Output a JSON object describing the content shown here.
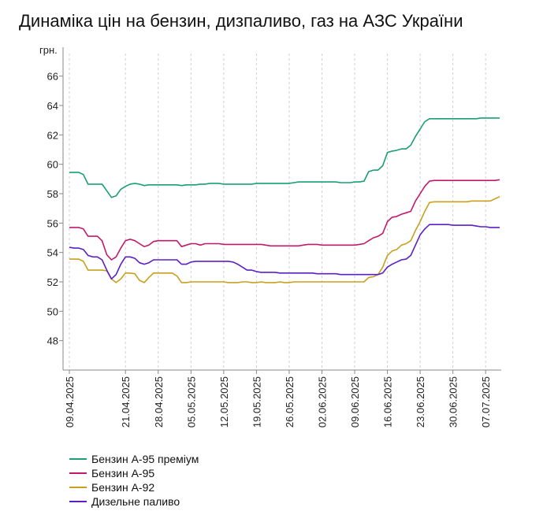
{
  "chart_data": {
    "type": "line",
    "title": "Динаміка цін на бензин, дизпаливо, газ на АЗС України",
    "ylabel": "грн.",
    "xlabel": "",
    "ylim": [
      46,
      67
    ],
    "yticks": [
      48,
      50,
      52,
      54,
      56,
      58,
      60,
      62,
      64,
      66
    ],
    "grid": "vertical dashed",
    "legend_position": "bottom-left",
    "x": [
      "2025-04-09",
      "2025-04-10",
      "2025-04-11",
      "2025-04-12",
      "2025-04-13",
      "2025-04-14",
      "2025-04-15",
      "2025-04-16",
      "2025-04-17",
      "2025-04-18",
      "2025-04-19",
      "2025-04-20",
      "2025-04-21",
      "2025-04-22",
      "2025-04-23",
      "2025-04-24",
      "2025-04-25",
      "2025-04-26",
      "2025-04-27",
      "2025-04-28",
      "2025-04-29",
      "2025-04-30",
      "2025-05-01",
      "2025-05-02",
      "2025-05-03",
      "2025-05-04",
      "2025-05-05",
      "2025-05-06",
      "2025-05-07",
      "2025-05-08",
      "2025-05-09",
      "2025-05-10",
      "2025-05-11",
      "2025-05-12",
      "2025-05-13",
      "2025-05-14",
      "2025-05-15",
      "2025-05-16",
      "2025-05-17",
      "2025-05-18",
      "2025-05-19",
      "2025-05-20",
      "2025-05-21",
      "2025-05-22",
      "2025-05-23",
      "2025-05-24",
      "2025-05-25",
      "2025-05-26",
      "2025-05-27",
      "2025-05-28",
      "2025-05-29",
      "2025-05-30",
      "2025-05-31",
      "2025-06-01",
      "2025-06-02",
      "2025-06-03",
      "2025-06-04",
      "2025-06-05",
      "2025-06-06",
      "2025-06-07",
      "2025-06-08",
      "2025-06-09",
      "2025-06-10",
      "2025-06-11",
      "2025-06-12",
      "2025-06-13",
      "2025-06-14",
      "2025-06-15",
      "2025-06-16",
      "2025-06-17",
      "2025-06-18",
      "2025-06-19",
      "2025-06-20",
      "2025-06-21",
      "2025-06-22",
      "2025-06-23",
      "2025-06-24",
      "2025-06-25",
      "2025-06-26",
      "2025-06-27",
      "2025-06-28",
      "2025-06-29",
      "2025-06-30",
      "2025-07-01",
      "2025-07-02",
      "2025-07-03",
      "2025-07-04",
      "2025-07-05",
      "2025-07-06",
      "2025-07-07",
      "2025-07-08",
      "2025-07-09",
      "2025-07-10"
    ],
    "xtick_labels": [
      "09.04.2025",
      "21.04.2025",
      "28.04.2025",
      "05.05.2025",
      "12.05.2025",
      "19.05.2025",
      "26.05.2025",
      "02.06.2025",
      "09.06.2025",
      "16.06.2025",
      "23.06.2025",
      "30.06.2025",
      "07.07.2025"
    ],
    "xtick_dates": [
      "2025-04-09",
      "2025-04-21",
      "2025-04-28",
      "2025-05-05",
      "2025-05-12",
      "2025-05-19",
      "2025-05-26",
      "2025-06-02",
      "2025-06-09",
      "2025-06-16",
      "2025-06-23",
      "2025-06-30",
      "2025-07-07"
    ],
    "series": [
      {
        "name": "Бензин А-95 преміум",
        "color": "#1a9e77",
        "values": [
          59.45,
          59.45,
          59.45,
          59.3,
          58.65,
          58.65,
          58.65,
          58.65,
          58.2,
          57.75,
          57.85,
          58.3,
          58.5,
          58.65,
          58.7,
          58.65,
          58.55,
          58.6,
          58.6,
          58.6,
          58.6,
          58.6,
          58.6,
          58.6,
          58.55,
          58.6,
          58.6,
          58.6,
          58.65,
          58.65,
          58.7,
          58.7,
          58.7,
          58.65,
          58.65,
          58.65,
          58.65,
          58.65,
          58.65,
          58.65,
          58.7,
          58.7,
          58.7,
          58.7,
          58.7,
          58.7,
          58.7,
          58.7,
          58.75,
          58.8,
          58.8,
          58.8,
          58.8,
          58.8,
          58.8,
          58.8,
          58.8,
          58.8,
          58.75,
          58.75,
          58.75,
          58.8,
          58.8,
          58.85,
          59.5,
          59.6,
          59.6,
          59.9,
          60.8,
          60.9,
          60.95,
          61.05,
          61.05,
          61.3,
          61.9,
          62.4,
          62.9,
          63.1,
          63.1,
          63.1,
          63.1,
          63.1,
          63.1,
          63.1,
          63.1,
          63.1,
          63.1,
          63.1,
          63.15,
          63.15,
          63.15,
          63.15,
          63.15
        ]
      },
      {
        "name": "Бензин А-95",
        "color": "#c2196b",
        "values": [
          55.7,
          55.7,
          55.7,
          55.6,
          55.1,
          55.1,
          55.1,
          54.8,
          53.85,
          53.5,
          53.7,
          54.3,
          54.8,
          54.9,
          54.8,
          54.6,
          54.4,
          54.5,
          54.75,
          54.8,
          54.8,
          54.8,
          54.8,
          54.8,
          54.4,
          54.5,
          54.6,
          54.6,
          54.5,
          54.6,
          54.6,
          54.6,
          54.6,
          54.55,
          54.55,
          54.55,
          54.55,
          54.55,
          54.55,
          54.55,
          54.55,
          54.55,
          54.5,
          54.45,
          54.45,
          54.45,
          54.45,
          54.45,
          54.45,
          54.45,
          54.5,
          54.55,
          54.55,
          54.55,
          54.5,
          54.5,
          54.5,
          54.5,
          54.5,
          54.5,
          54.5,
          54.5,
          54.55,
          54.6,
          54.8,
          55.0,
          55.1,
          55.3,
          56.1,
          56.4,
          56.45,
          56.6,
          56.7,
          56.8,
          57.5,
          58.0,
          58.5,
          58.85,
          58.9,
          58.9,
          58.9,
          58.9,
          58.9,
          58.9,
          58.9,
          58.9,
          58.9,
          58.9,
          58.9,
          58.9,
          58.9,
          58.9,
          58.95
        ]
      },
      {
        "name": "Бензин А-92",
        "color": "#c9a01e",
        "values": [
          53.55,
          53.55,
          53.55,
          53.4,
          52.8,
          52.8,
          52.8,
          52.8,
          52.75,
          52.2,
          51.95,
          52.2,
          52.6,
          52.6,
          52.55,
          52.1,
          51.95,
          52.3,
          52.6,
          52.6,
          52.6,
          52.6,
          52.6,
          52.4,
          51.95,
          51.95,
          52.0,
          52.0,
          52.0,
          52.0,
          52.0,
          52.0,
          52.0,
          52.0,
          51.95,
          51.95,
          51.95,
          52.0,
          52.0,
          51.95,
          51.95,
          52.0,
          51.95,
          51.95,
          51.95,
          52.0,
          51.95,
          51.95,
          52.0,
          52.0,
          52.0,
          52.0,
          52.0,
          52.0,
          52.0,
          52.0,
          52.0,
          52.0,
          52.0,
          52.0,
          52.0,
          52.0,
          52.0,
          52.0,
          52.3,
          52.35,
          52.5,
          53.0,
          53.8,
          54.1,
          54.2,
          54.5,
          54.6,
          54.8,
          55.5,
          56.1,
          56.8,
          57.4,
          57.45,
          57.45,
          57.45,
          57.45,
          57.45,
          57.45,
          57.45,
          57.45,
          57.5,
          57.5,
          57.5,
          57.5,
          57.5,
          57.65,
          57.8
        ]
      },
      {
        "name": "Дизельне паливо",
        "color": "#5b1fc7",
        "values": [
          54.35,
          54.3,
          54.3,
          54.2,
          53.8,
          53.7,
          53.7,
          53.5,
          52.8,
          52.2,
          52.5,
          53.2,
          53.7,
          53.7,
          53.6,
          53.3,
          53.2,
          53.3,
          53.5,
          53.5,
          53.5,
          53.5,
          53.5,
          53.5,
          53.2,
          53.2,
          53.35,
          53.4,
          53.4,
          53.4,
          53.4,
          53.4,
          53.4,
          53.4,
          53.4,
          53.35,
          53.2,
          53.0,
          52.8,
          52.8,
          52.7,
          52.65,
          52.65,
          52.65,
          52.65,
          52.6,
          52.6,
          52.6,
          52.6,
          52.6,
          52.6,
          52.6,
          52.6,
          52.55,
          52.55,
          52.55,
          52.55,
          52.55,
          52.5,
          52.5,
          52.5,
          52.5,
          52.5,
          52.5,
          52.5,
          52.5,
          52.5,
          52.6,
          53.0,
          53.2,
          53.35,
          53.5,
          53.55,
          53.8,
          54.5,
          55.2,
          55.6,
          55.9,
          55.9,
          55.9,
          55.9,
          55.9,
          55.85,
          55.85,
          55.85,
          55.85,
          55.85,
          55.8,
          55.75,
          55.75,
          55.7,
          55.7,
          55.7
        ]
      }
    ]
  }
}
